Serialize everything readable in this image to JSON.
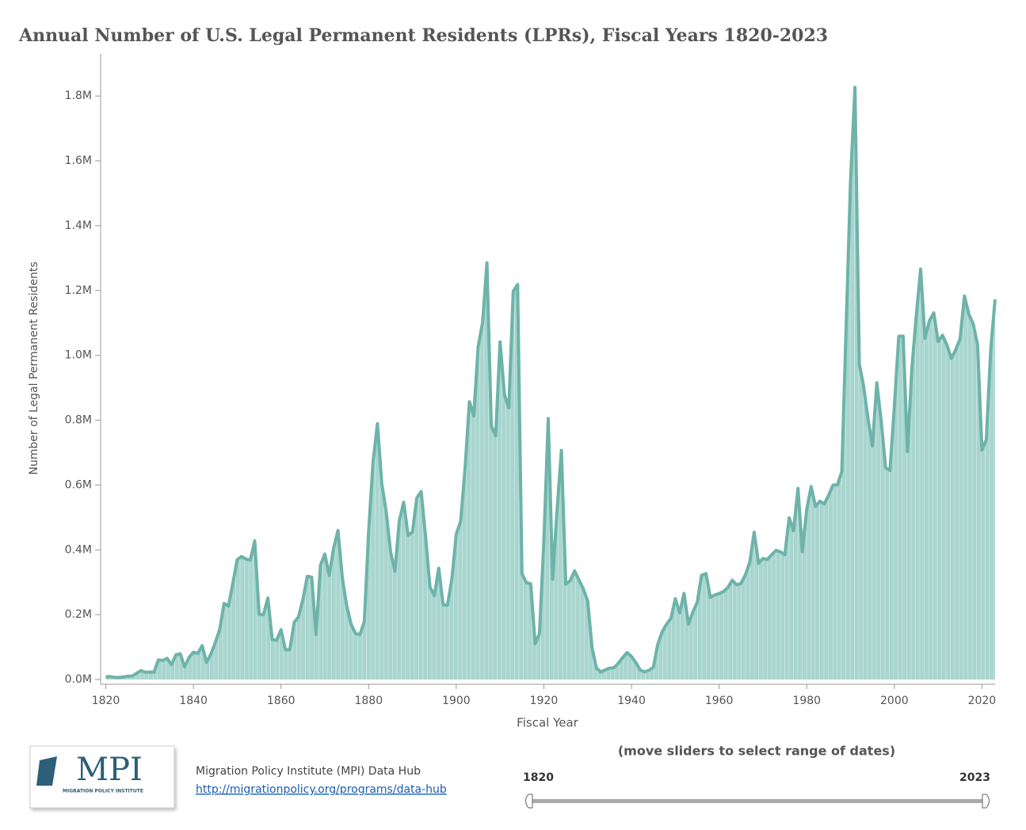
{
  "chart_data": {
    "type": "area",
    "title": "Annual Number of U.S. Legal Permanent Residents (LPRs), Fiscal Years 1820-2023",
    "x_label": "Fiscal Year",
    "y_label": "Number of Legal Permanent Residents",
    "x": [
      1820,
      1821,
      1822,
      1823,
      1824,
      1825,
      1826,
      1827,
      1828,
      1829,
      1830,
      1831,
      1832,
      1833,
      1834,
      1835,
      1836,
      1837,
      1838,
      1839,
      1840,
      1841,
      1842,
      1843,
      1844,
      1845,
      1846,
      1847,
      1848,
      1849,
      1850,
      1851,
      1852,
      1853,
      1854,
      1855,
      1856,
      1857,
      1858,
      1859,
      1860,
      1861,
      1862,
      1863,
      1864,
      1865,
      1866,
      1867,
      1868,
      1869,
      1870,
      1871,
      1872,
      1873,
      1874,
      1875,
      1876,
      1877,
      1878,
      1879,
      1880,
      1881,
      1882,
      1883,
      1884,
      1885,
      1886,
      1887,
      1888,
      1889,
      1890,
      1891,
      1892,
      1893,
      1894,
      1895,
      1896,
      1897,
      1898,
      1899,
      1900,
      1901,
      1902,
      1903,
      1904,
      1905,
      1906,
      1907,
      1908,
      1909,
      1910,
      1911,
      1912,
      1913,
      1914,
      1915,
      1916,
      1917,
      1918,
      1919,
      1920,
      1921,
      1922,
      1923,
      1924,
      1925,
      1926,
      1927,
      1928,
      1929,
      1930,
      1931,
      1932,
      1933,
      1934,
      1935,
      1936,
      1937,
      1938,
      1939,
      1940,
      1941,
      1942,
      1943,
      1944,
      1945,
      1946,
      1947,
      1948,
      1949,
      1950,
      1951,
      1952,
      1953,
      1954,
      1955,
      1956,
      1957,
      1958,
      1959,
      1960,
      1961,
      1962,
      1963,
      1964,
      1965,
      1966,
      1967,
      1968,
      1969,
      1970,
      1971,
      1972,
      1973,
      1974,
      1975,
      1976,
      1977,
      1978,
      1979,
      1980,
      1981,
      1982,
      1983,
      1984,
      1985,
      1986,
      1987,
      1988,
      1989,
      1990,
      1991,
      1992,
      1993,
      1994,
      1995,
      1996,
      1997,
      1998,
      1999,
      2000,
      2001,
      2002,
      2003,
      2004,
      2005,
      2006,
      2007,
      2008,
      2009,
      2010,
      2011,
      2012,
      2013,
      2014,
      2015,
      2016,
      2017,
      2018,
      2019,
      2020,
      2021,
      2022,
      2023
    ],
    "values": [
      8385,
      9127,
      6911,
      6354,
      7912,
      10199,
      10837,
      18875,
      27382,
      22520,
      23322,
      22633,
      60482,
      58640,
      65365,
      45374,
      76242,
      79340,
      38914,
      68069,
      84066,
      80289,
      104565,
      52496,
      78615,
      114371,
      154416,
      234968,
      226527,
      297024,
      369980,
      379466,
      371603,
      368645,
      427833,
      200877,
      200436,
      251306,
      123126,
      121282,
      153640,
      91918,
      91985,
      176282,
      193418,
      248120,
      318568,
      315722,
      138840,
      352768,
      387203,
      321350,
      404806,
      459803,
      313339,
      227498,
      169986,
      141857,
      138469,
      177826,
      457257,
      669431,
      788992,
      603322,
      518592,
      395346,
      334203,
      490109,
      546889,
      444427,
      455302,
      560319,
      579663,
      439730,
      285631,
      258536,
      343267,
      230832,
      229299,
      311715,
      448572,
      487918,
      648743,
      857046,
      812870,
      1026499,
      1100735,
      1285349,
      782870,
      751786,
      1041570,
      878587,
      838172,
      1197892,
      1218480,
      326700,
      298826,
      295403,
      110618,
      141132,
      430001,
      805228,
      309556,
      522919,
      706896,
      294314,
      304488,
      335175,
      307255,
      279678,
      241700,
      97139,
      35576,
      23068,
      29470,
      34956,
      36329,
      50244,
      67895,
      82998,
      70756,
      51776,
      28781,
      23725,
      28551,
      38119,
      108721,
      147292,
      170570,
      188317,
      249187,
      205717,
      265520,
      170434,
      208177,
      237790,
      321625,
      326867,
      253265,
      260686,
      265398,
      271344,
      283763,
      306260,
      292248,
      296697,
      323040,
      361972,
      454448,
      358579,
      373326,
      370478,
      384685,
      398515,
      393919,
      385378,
      499093,
      458755,
      589810,
      394244,
      524295,
      595014,
      533624,
      550052,
      541811,
      568149,
      600027,
      599889,
      641346,
      1090172,
      1535872,
      1826595,
      973445,
      903916,
      803993,
      720177,
      915560,
      797847,
      653206,
      644787,
      841002,
      1058902,
      1059356,
      703542,
      957883,
      1122257,
      1266129,
      1052415,
      1107126,
      1130818,
      1042625,
      1062040,
      1031631,
      990553,
      1016518,
      1051031,
      1183505,
      1127167,
      1096611,
      1031765,
      707362,
      740002,
      1018349,
      1172910
    ],
    "color": "#6db3a9",
    "fill_color": "#a9d5cf",
    "xlim": [
      1819,
      2023
    ],
    "xticks": [
      1820,
      1840,
      1860,
      1880,
      1900,
      1920,
      1940,
      1960,
      1980,
      2000,
      2020
    ],
    "ylim": [
      0,
      1930000
    ],
    "yticks": [
      {
        "value": 0,
        "label": "0.0M"
      },
      {
        "value": 200000,
        "label": "0.2M"
      },
      {
        "value": 400000,
        "label": "0.4M"
      },
      {
        "value": 600000,
        "label": "0.6M"
      },
      {
        "value": 800000,
        "label": "0.8M"
      },
      {
        "value": 1000000,
        "label": "1.0M"
      },
      {
        "value": 1200000,
        "label": "1.2M"
      },
      {
        "value": 1400000,
        "label": "1.4M"
      },
      {
        "value": 1600000,
        "label": "1.6M"
      },
      {
        "value": 1800000,
        "label": "1.8M"
      }
    ],
    "grid": false
  },
  "footer": {
    "logo": "MPI",
    "logo_subtitle": "MIGRATION POLICY INSTITUTE",
    "source": "Migration Policy Institute (MPI) Data Hub",
    "link": "http://migrationpolicy.org/programs/data-hub"
  },
  "slider": {
    "instruction": "(move sliders to select range of dates)",
    "start": "1820",
    "end": "2023"
  }
}
